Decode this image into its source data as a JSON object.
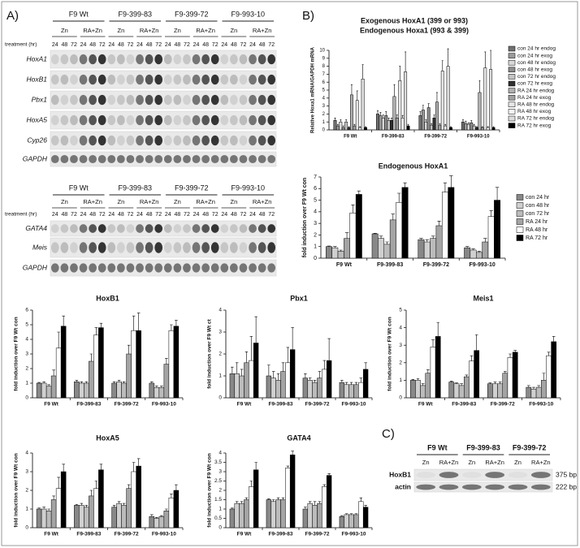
{
  "panel_labels": {
    "A": "A)",
    "B": "B)",
    "C": "C)"
  },
  "blot_a1": {
    "treatment_label": "treatment (hr)",
    "groups": [
      "F9 Wt",
      "F9-399-83",
      "F9-399-72",
      "F9-993-10"
    ],
    "conditions": [
      "Zn",
      "RA+Zn"
    ],
    "times": [
      "24",
      "48",
      "72"
    ],
    "rows": [
      "HoxA1",
      "HoxB1",
      "Pbx1",
      "HoxA5",
      "Cyp26",
      "GAPDH"
    ]
  },
  "blot_a2": {
    "treatment_label": "treatment (hr)",
    "groups": [
      "F9 Wt",
      "F9-399-83",
      "F9-399-72",
      "F9-993-10"
    ],
    "conditions": [
      "Zn",
      "RA+Zn"
    ],
    "times": [
      "24",
      "48",
      "72"
    ],
    "rows": [
      "GATA4",
      "Meis",
      "GAPDH"
    ]
  },
  "blot_c": {
    "groups": [
      "F9 Wt",
      "F9-399-83",
      "F9-399-72"
    ],
    "conditions": [
      "Zn",
      "RA+Zn"
    ],
    "rows": [
      "HoxB1",
      "actin"
    ],
    "sizes": [
      "375 bp",
      "222 bp"
    ]
  },
  "chart_data": [
    {
      "type": "bar",
      "title": "Exogenous HoxA1 (399 or 993)",
      "subtitle": "Endogenous Hoxa1 (993 & 399)",
      "y_label": "Relative Hoxa1 mRNA/GAPDH mRNA",
      "categories": [
        "F9 Wt",
        "F9-399-83",
        "F9-399-72",
        "F9-993-10"
      ],
      "ylim": [
        0,
        10
      ],
      "yticks": [
        0,
        1,
        2,
        3,
        4,
        5,
        6,
        7,
        8,
        9,
        10
      ],
      "series": [
        {
          "name": "con 24 hr endog",
          "color": "#707070",
          "values": [
            1.2,
            2.0,
            1.8,
            1.0
          ],
          "errors": [
            0.3,
            0.4,
            0.5,
            0.3
          ]
        },
        {
          "name": "con 24 hr exog",
          "color": "#9a9a9a",
          "values": [
            0.5,
            1.8,
            2.5,
            0.8
          ],
          "errors": [
            0.2,
            0.4,
            0.6,
            0.3
          ]
        },
        {
          "name": "con 48 hr endog",
          "color": "#d8d8d8",
          "values": [
            1.0,
            1.5,
            1.0,
            0.7
          ],
          "errors": [
            0.3,
            0.4,
            0.3,
            0.2
          ]
        },
        {
          "name": "con 48 hr exog",
          "color": "#8c8c8c",
          "values": [
            0.3,
            1.8,
            2.8,
            0.9
          ],
          "errors": [
            0.2,
            0.5,
            0.5,
            0.3
          ]
        },
        {
          "name": "con 72 hr endog",
          "color": "#c4c4c4",
          "values": [
            1.0,
            1.2,
            0.6,
            0.5
          ],
          "errors": [
            0.3,
            0.3,
            0.2,
            0.2
          ]
        },
        {
          "name": "con 72 hr exog",
          "color": "#303030",
          "values": [
            0.3,
            1.2,
            1.5,
            0.3
          ],
          "errors": [
            0.1,
            0.3,
            0.4,
            0.1
          ]
        },
        {
          "name": "RA 24 hr endog",
          "color": "#b0b0b0",
          "values": [
            4.4,
            4.2,
            3.5,
            4.7
          ],
          "errors": [
            1.3,
            1.5,
            1.2,
            1.5
          ]
        },
        {
          "name": "RA 24 hr exog",
          "color": "#a0a0a0",
          "values": [
            0.5,
            1.5,
            0.6,
            0.3
          ],
          "errors": [
            0.2,
            0.4,
            0.2,
            0.1
          ]
        },
        {
          "name": "RA 48 hr endog",
          "color": "#e6e6e6",
          "values": [
            3.7,
            6.2,
            7.4,
            7.8
          ],
          "errors": [
            1.2,
            1.8,
            1.3,
            2.0
          ]
        },
        {
          "name": "RA 48 hr exog",
          "color": "#f4f4f4",
          "values": [
            0.3,
            1.5,
            0.5,
            0.3
          ],
          "errors": [
            0.1,
            0.3,
            0.2,
            0.1
          ]
        },
        {
          "name": "RA 72 hr endog",
          "color": "#dcdcdc",
          "values": [
            6.4,
            7.3,
            8.0,
            7.6
          ],
          "errors": [
            1.8,
            2.5,
            2.2,
            2.4
          ]
        },
        {
          "name": "RA 72 hr exog",
          "color": "#000000",
          "values": [
            0.3,
            0.5,
            0.3,
            0.3
          ],
          "errors": [
            0.1,
            0.2,
            0.1,
            0.1
          ]
        }
      ]
    },
    {
      "type": "bar",
      "title": "Endogenous HoxA1",
      "y_label": "fold induction over F9 Wt con",
      "categories": [
        "F9 Wt",
        "F9-399-83",
        "F9-399-72",
        "F9-993-10"
      ],
      "ylim": [
        0,
        7
      ],
      "yticks": [
        0,
        1,
        2,
        3,
        4,
        5,
        6,
        7
      ],
      "series": [
        {
          "name": "con 24 hr",
          "color": "#888888",
          "values": [
            1.0,
            2.1,
            1.6,
            0.9
          ],
          "errors": [
            0.05,
            0.05,
            0.1,
            0.1
          ]
        },
        {
          "name": "con 48 hr",
          "color": "#d0d0d0",
          "values": [
            0.9,
            1.7,
            1.4,
            0.7
          ],
          "errors": [
            0.1,
            0.2,
            0.2,
            0.1
          ]
        },
        {
          "name": "con 72 hr",
          "color": "#bbbbbb",
          "values": [
            0.6,
            1.2,
            1.7,
            0.5
          ],
          "errors": [
            0.1,
            0.2,
            0.2,
            0.1
          ]
        },
        {
          "name": "RA 24 hr",
          "color": "#a4a4a4",
          "values": [
            1.7,
            3.3,
            2.8,
            1.4
          ],
          "errors": [
            0.5,
            0.5,
            0.4,
            0.3
          ]
        },
        {
          "name": "RA 48 hr",
          "color": "#ffffff",
          "values": [
            3.9,
            4.8,
            5.7,
            3.6
          ],
          "errors": [
            0.7,
            0.8,
            0.8,
            0.5
          ]
        },
        {
          "name": "RA 72 hr",
          "color": "#000000",
          "values": [
            5.5,
            6.1,
            6.1,
            5.0
          ],
          "errors": [
            0.3,
            0.4,
            1.0,
            1.1
          ]
        }
      ]
    },
    {
      "type": "bar",
      "title": "HoxB1",
      "y_label": "fold induction over F9 Wt con",
      "categories": [
        "F9 Wt",
        "F9-399-83",
        "F9-399-72",
        "F9-993-10"
      ],
      "ylim": [
        0,
        6
      ],
      "yticks": [
        0,
        1,
        2,
        3,
        4,
        5,
        6
      ],
      "series": [
        {
          "name": "con 24 hr",
          "color": "#888888",
          "values": [
            1.0,
            1.1,
            1.0,
            1.0
          ],
          "errors": [
            0.05,
            0.1,
            0.1,
            0.1
          ]
        },
        {
          "name": "con 48 hr",
          "color": "#d0d0d0",
          "values": [
            1.0,
            1.0,
            1.1,
            0.7
          ],
          "errors": [
            0.1,
            0.1,
            0.1,
            0.1
          ]
        },
        {
          "name": "con 72 hr",
          "color": "#bbbbbb",
          "values": [
            0.8,
            1.0,
            1.0,
            0.7
          ],
          "errors": [
            0.1,
            0.1,
            0.1,
            0.1
          ]
        },
        {
          "name": "RA 24 hr",
          "color": "#a4a4a4",
          "values": [
            1.5,
            2.5,
            3.0,
            2.3
          ],
          "errors": [
            0.4,
            0.5,
            0.6,
            0.4
          ]
        },
        {
          "name": "RA 48 hr",
          "color": "#ffffff",
          "values": [
            3.4,
            4.3,
            4.6,
            4.6
          ],
          "errors": [
            1.1,
            0.5,
            1.0,
            0.4
          ]
        },
        {
          "name": "RA 72 hr",
          "color": "#000000",
          "values": [
            4.9,
            4.8,
            4.6,
            4.9
          ],
          "errors": [
            0.7,
            0.3,
            1.2,
            0.4
          ]
        }
      ]
    },
    {
      "type": "bar",
      "title": "Pbx1",
      "y_label": "fold induction over F9 Wt ct",
      "categories": [
        "F9 Wt",
        "F9-399-83",
        "F9-399-72",
        "F9-993-10"
      ],
      "ylim": [
        0,
        4
      ],
      "yticks": [
        0,
        1,
        2,
        3,
        4
      ],
      "series": [
        {
          "name": "con 24 hr",
          "color": "#888888",
          "values": [
            1.1,
            1.0,
            0.9,
            0.7
          ],
          "errors": [
            0.3,
            0.5,
            0.2,
            0.1
          ]
        },
        {
          "name": "con 48 hr",
          "color": "#d0d0d0",
          "values": [
            1.1,
            0.9,
            0.8,
            0.6
          ],
          "errors": [
            0.5,
            0.3,
            0.1,
            0.1
          ]
        },
        {
          "name": "con 72 hr",
          "color": "#bbbbbb",
          "values": [
            1.0,
            0.8,
            0.7,
            0.6
          ],
          "errors": [
            0.3,
            0.3,
            0.1,
            0.1
          ]
        },
        {
          "name": "RA 24 hr",
          "color": "#a4a4a4",
          "values": [
            1.6,
            1.2,
            0.9,
            0.6
          ],
          "errors": [
            0.5,
            0.4,
            0.3,
            0.1
          ]
        },
        {
          "name": "RA 48 hr",
          "color": "#ffffff",
          "values": [
            1.7,
            1.6,
            1.3,
            0.7
          ],
          "errors": [
            1.1,
            0.7,
            0.4,
            0.2
          ]
        },
        {
          "name": "RA 72 hr",
          "color": "#000000",
          "values": [
            2.5,
            2.2,
            1.7,
            1.3
          ],
          "errors": [
            1.2,
            1.0,
            1.0,
            0.3
          ]
        }
      ]
    },
    {
      "type": "bar",
      "title": "Meis1",
      "y_label": "fold induction over F9 Wt con",
      "categories": [
        "F9 Wt",
        "F9-399-83",
        "F9-399-72",
        "F9-993-10"
      ],
      "ylim": [
        0,
        5
      ],
      "yticks": [
        0,
        1,
        2,
        3,
        4,
        5
      ],
      "series": [
        {
          "name": "con 24 hr",
          "color": "#888888",
          "values": [
            1.0,
            0.9,
            0.8,
            0.6
          ],
          "errors": [
            0.05,
            0.05,
            0.05,
            0.1
          ]
        },
        {
          "name": "con 48 hr",
          "color": "#d0d0d0",
          "values": [
            1.0,
            0.8,
            0.8,
            0.5
          ],
          "errors": [
            0.1,
            0.05,
            0.1,
            0.1
          ]
        },
        {
          "name": "con 72 hr",
          "color": "#bbbbbb",
          "values": [
            0.7,
            0.7,
            0.8,
            0.6
          ],
          "errors": [
            0.1,
            0.1,
            0.1,
            0.1
          ]
        },
        {
          "name": "RA 24 hr",
          "color": "#a4a4a4",
          "values": [
            1.4,
            1.2,
            1.4,
            1.0
          ],
          "errors": [
            0.2,
            0.1,
            0.1,
            0.4
          ]
        },
        {
          "name": "RA 48 hr",
          "color": "#ffffff",
          "values": [
            2.9,
            2.1,
            2.3,
            2.4
          ],
          "errors": [
            0.4,
            0.3,
            0.2,
            0.2
          ]
        },
        {
          "name": "RA 72 hr",
          "color": "#000000",
          "values": [
            3.5,
            2.7,
            2.6,
            3.2
          ],
          "errors": [
            0.8,
            0.9,
            0.1,
            0.3
          ]
        }
      ]
    },
    {
      "type": "bar",
      "title": "HoxA5",
      "y_label": "fold induction over F9 Wt con",
      "categories": [
        "F9 Wt",
        "F9-399-83",
        "F9-399-72",
        "F9-993-10"
      ],
      "ylim": [
        0,
        4
      ],
      "yticks": [
        0,
        1,
        2,
        3,
        4
      ],
      "series": [
        {
          "name": "con 24 hr",
          "color": "#888888",
          "values": [
            1.0,
            1.2,
            1.1,
            0.6
          ],
          "errors": [
            0.05,
            0.05,
            0.1,
            0.1
          ]
        },
        {
          "name": "con 48 hr",
          "color": "#d0d0d0",
          "values": [
            1.0,
            1.2,
            1.3,
            0.5
          ],
          "errors": [
            0.1,
            0.1,
            0.1,
            0.05
          ]
        },
        {
          "name": "con 72 hr",
          "color": "#bbbbbb",
          "values": [
            0.9,
            1.1,
            1.2,
            0.6
          ],
          "errors": [
            0.1,
            0.1,
            0.1,
            0.05
          ]
        },
        {
          "name": "RA 24 hr",
          "color": "#a4a4a4",
          "values": [
            1.5,
            1.7,
            2.1,
            0.9
          ],
          "errors": [
            0.2,
            0.3,
            0.2,
            0.1
          ]
        },
        {
          "name": "RA 48 hr",
          "color": "#ffffff",
          "values": [
            2.1,
            2.1,
            3.0,
            1.6
          ],
          "errors": [
            0.6,
            0.4,
            0.5,
            0.2
          ]
        },
        {
          "name": "RA 72 hr",
          "color": "#000000",
          "values": [
            3.0,
            3.1,
            3.3,
            2.0
          ],
          "errors": [
            0.4,
            0.3,
            0.4,
            0.3
          ]
        }
      ]
    },
    {
      "type": "bar",
      "title": "GATA4",
      "y_label": "fold induction over F9 Wt con",
      "categories": [
        "F9 Wt",
        "F9-399-83",
        "F9-399-72",
        "F9-993-10"
      ],
      "ylim": [
        0,
        4
      ],
      "yticks": [
        0,
        0.5,
        1,
        1.5,
        2,
        2.5,
        3,
        3.5,
        4
      ],
      "series": [
        {
          "name": "con 24 hr",
          "color": "#888888",
          "values": [
            1.0,
            1.5,
            1.0,
            0.6
          ],
          "errors": [
            0.05,
            0.05,
            0.1,
            0.05
          ]
        },
        {
          "name": "con 48 hr",
          "color": "#d0d0d0",
          "values": [
            1.3,
            1.4,
            1.3,
            0.7
          ],
          "errors": [
            0.1,
            0.1,
            0.1,
            0.05
          ]
        },
        {
          "name": "con 72 hr",
          "color": "#bbbbbb",
          "values": [
            1.3,
            1.5,
            1.2,
            0.7
          ],
          "errors": [
            0.1,
            0.1,
            0.2,
            0.05
          ]
        },
        {
          "name": "RA 24 hr",
          "color": "#a4a4a4",
          "values": [
            1.5,
            1.5,
            1.3,
            0.7
          ],
          "errors": [
            0.1,
            0.1,
            0.1,
            0.05
          ]
        },
        {
          "name": "RA 48 hr",
          "color": "#ffffff",
          "values": [
            2.2,
            3.2,
            2.2,
            1.4
          ],
          "errors": [
            0.3,
            0.1,
            0.1,
            0.2
          ]
        },
        {
          "name": "RA 72 hr",
          "color": "#000000",
          "values": [
            3.1,
            3.9,
            2.8,
            1.1
          ],
          "errors": [
            0.4,
            0.2,
            0.1,
            0.1
          ]
        }
      ]
    }
  ]
}
